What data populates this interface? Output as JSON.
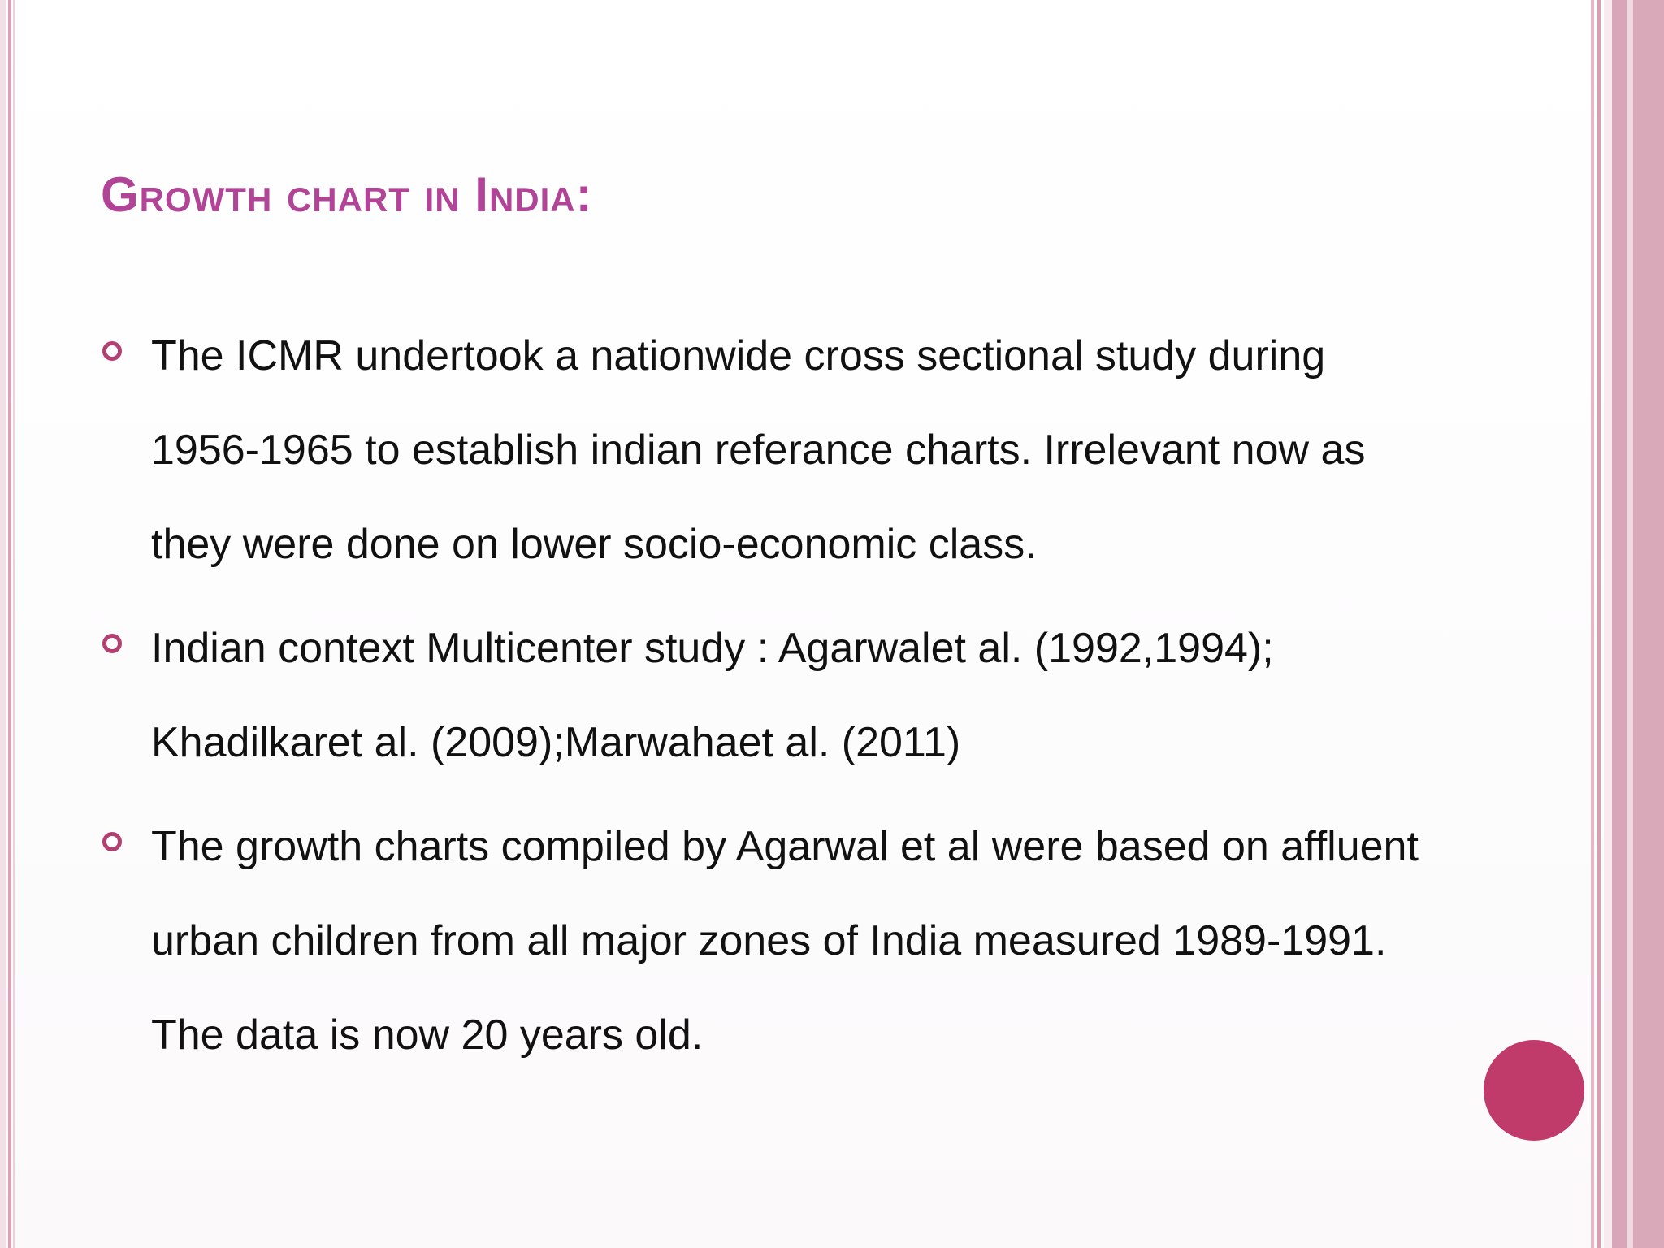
{
  "slide": {
    "title": "Growth chart in India:",
    "bullets": [
      {
        "text": "The ICMR undertook a nationwide cross sectional study during 1956-1965 to establish indian referance charts. Irrelevant now as they were done on lower socio-economic class."
      },
      {
        "text": "Indian context Multicenter study : Agarwalet al. (1992,1994); Khadilkaret al. (2009);Marwahaet al. (2011)"
      },
      {
        "text": "The growth charts compiled by Agarwal et al were based on affluent urban children from all major zones of India measured 1989-1991. The data is now 20 years old."
      }
    ]
  },
  "colors": {
    "title": "#b24498",
    "bullet_marker": "#b24070",
    "accent_circle": "#c03a6a",
    "border_stripes": "#d9a9ba"
  }
}
